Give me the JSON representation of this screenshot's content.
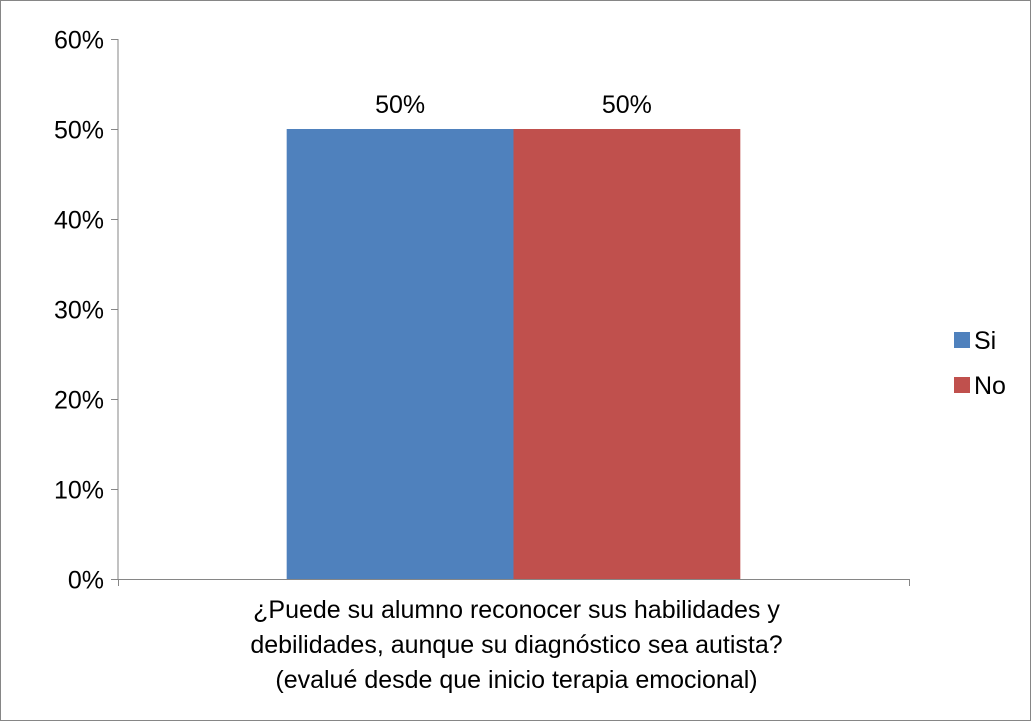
{
  "chart_data": {
    "type": "bar",
    "categories": [
      "¿Puede su alumno reconocer sus habilidades y debilidades, aunque su diagnóstico sea autista? (evalué desde que inicio terapia emocional)"
    ],
    "category_lines": [
      "¿Puede su alumno reconocer sus habilidades y",
      "debilidades, aunque su diagnóstico sea autista?",
      "(evalué desde que inicio terapia emocional)"
    ],
    "series": [
      {
        "name": "Si",
        "values": [
          0.5
        ],
        "data_labels": [
          "50%"
        ],
        "color": "#4F81BD"
      },
      {
        "name": "No",
        "values": [
          0.5
        ],
        "data_labels": [
          "50%"
        ],
        "color": "#C0504D"
      }
    ],
    "title": "",
    "xlabel": "",
    "ylabel": "",
    "ylim": [
      0,
      0.6
    ],
    "yticks": [
      0,
      0.1,
      0.2,
      0.3,
      0.4,
      0.5,
      0.6
    ],
    "ytick_labels": [
      "0%",
      "10%",
      "20%",
      "30%",
      "40%",
      "50%",
      "60%"
    ],
    "grid": false,
    "legend_position": "right"
  }
}
